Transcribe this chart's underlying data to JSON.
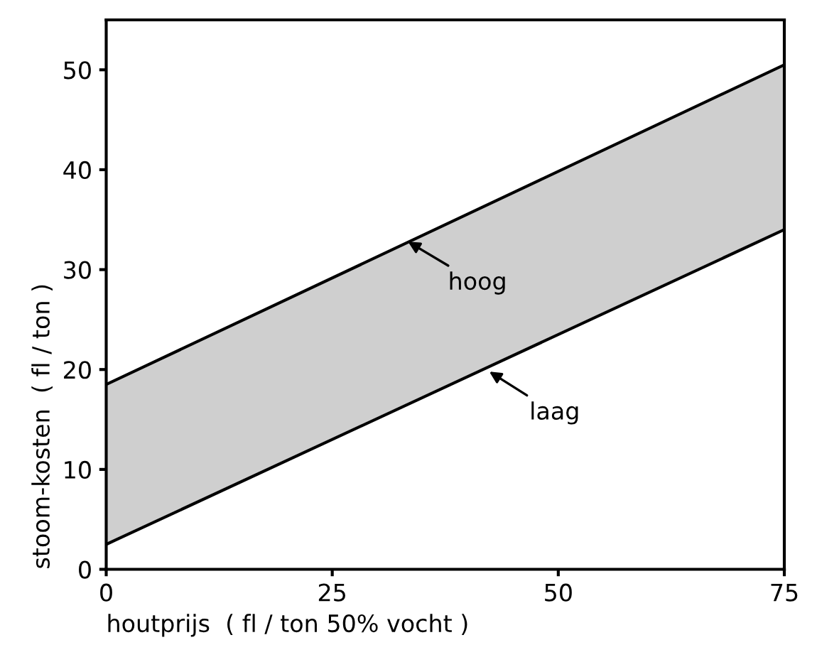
{
  "chart_data": {
    "type": "line",
    "xlabel": "houtprijs  ( fl / ton 50% vocht )",
    "ylabel": "stoom-kosten  ( fl / ton )",
    "x": [
      0,
      75
    ],
    "series": [
      {
        "color": "#000000",
        "values": [
          18.5,
          50.5
        ],
        "lower": [
          2.5,
          34
        ],
        "upper": [
          18.5,
          50.5
        ]
      },
      {
        "color": "#000000",
        "values": [
          2.5,
          34
        ]
      }
    ],
    "xlim": [
      0,
      75
    ],
    "xticks": [
      0,
      25,
      50,
      75
    ],
    "ylim": [
      0,
      55
    ],
    "yticks": [
      0,
      10,
      20,
      30,
      40,
      50
    ],
    "grid": false,
    "legend": false,
    "marker": "none",
    "line_style": "solid",
    "annotations": [
      {
        "text": "hoog",
        "x": 33,
        "y": 33
      },
      {
        "text": "laag",
        "x": 42,
        "y": 20
      }
    ]
  }
}
